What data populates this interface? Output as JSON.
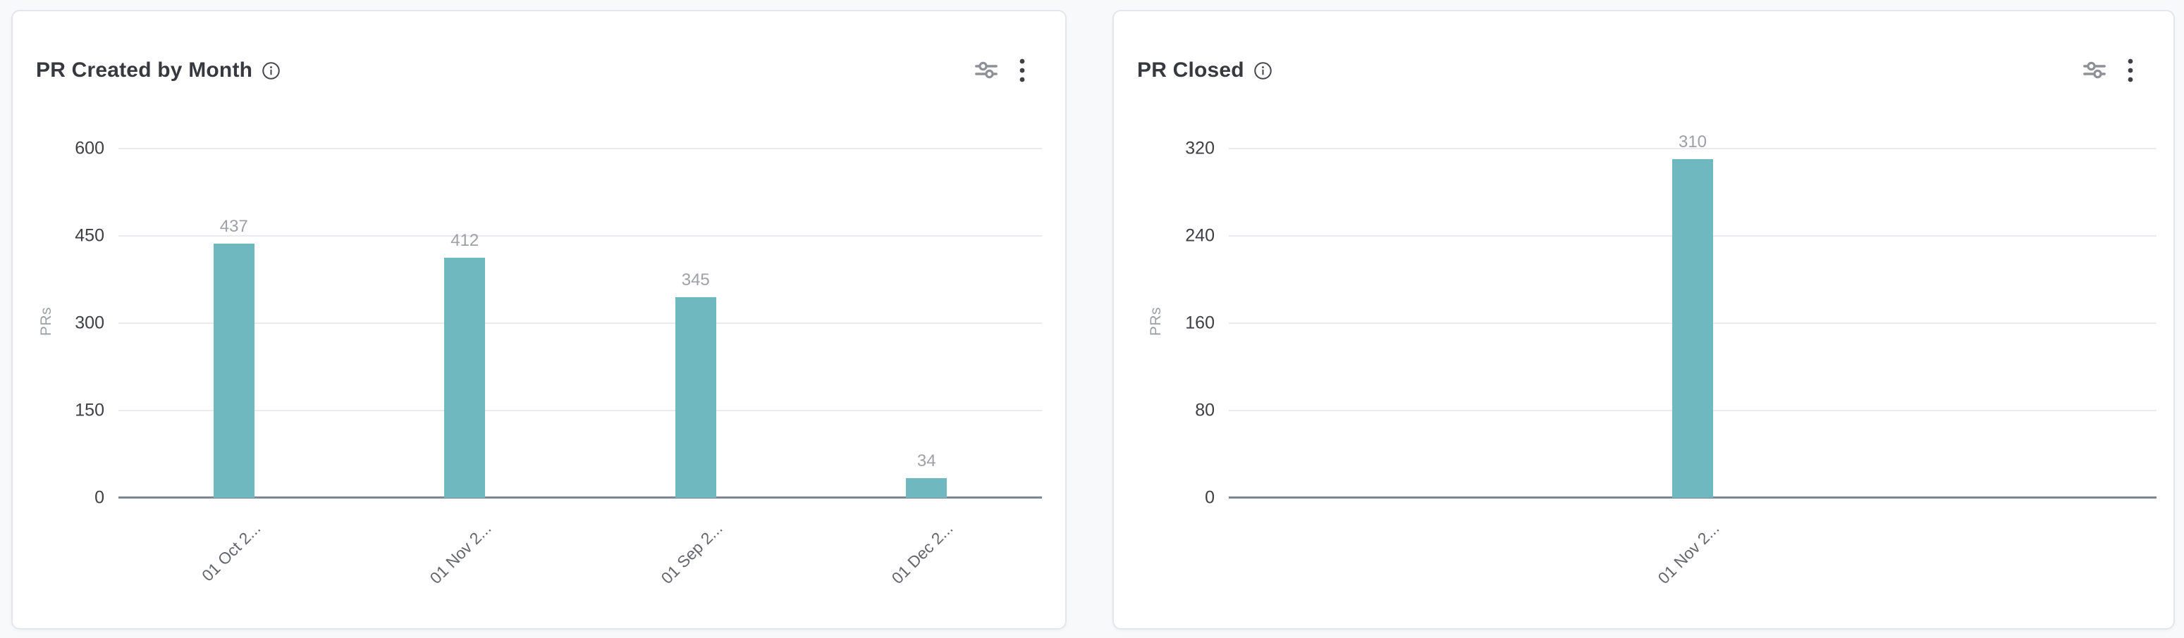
{
  "page": {
    "background_color": "#f8f9fb",
    "card_background": "#ffffff"
  },
  "cards": [
    {
      "title": "PR Created by Month"
    },
    {
      "title": "PR Closed"
    }
  ],
  "icons": {
    "info": "info-icon",
    "filter": "sliders-icon",
    "menu": "kebab-menu-icon"
  },
  "chart_data": [
    {
      "type": "bar",
      "title": "PR Created by Month",
      "categories": [
        "01 Oct 2...",
        "01 Nov 2...",
        "01 Sep 2...",
        "01 Dec 2..."
      ],
      "values": [
        437,
        412,
        345,
        34
      ],
      "xlabel": "",
      "ylabel": "PRs",
      "ylim": [
        0,
        600
      ],
      "yticks": [
        0,
        150,
        300,
        450,
        600
      ],
      "bar_color": "#6FB8BF",
      "value_label_color": "#9EA0A5",
      "grid": true,
      "legend": false,
      "value_labels": true
    },
    {
      "type": "bar",
      "title": "PR Closed",
      "categories": [
        "01 Nov 2..."
      ],
      "values": [
        310
      ],
      "xlabel": "",
      "ylabel": "PRs",
      "ylim": [
        0,
        320
      ],
      "yticks": [
        0,
        80,
        160,
        240,
        320
      ],
      "bar_color": "#6FB8BF",
      "value_label_color": "#9EA0A5",
      "grid": true,
      "legend": false,
      "value_labels": true
    }
  ]
}
